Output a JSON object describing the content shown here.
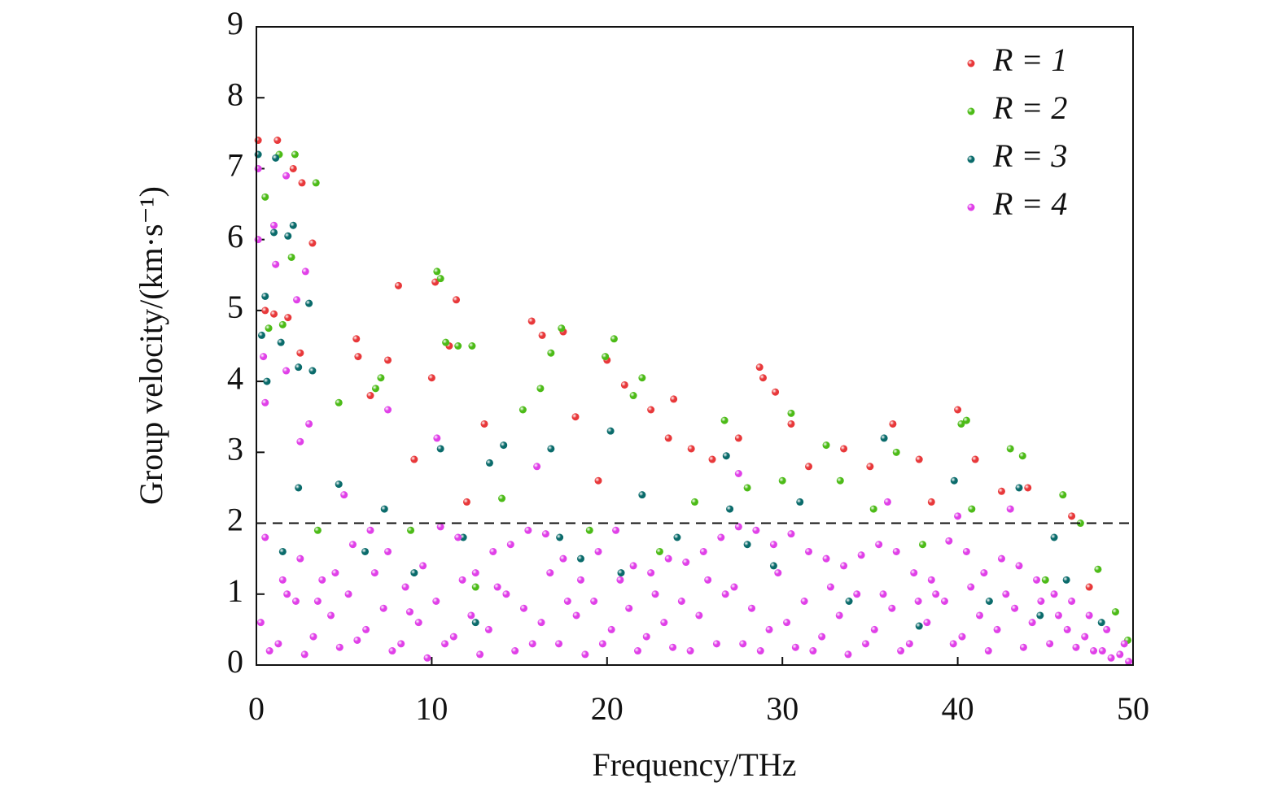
{
  "chart_data": {
    "type": "scatter",
    "x_label": "Frequency/THz",
    "y_label": "Group velocity/(km·s⁻¹)",
    "xlim": [
      0,
      50
    ],
    "ylim": [
      0,
      9
    ],
    "xticks": [
      0,
      10,
      20,
      30,
      40,
      50
    ],
    "yticks": [
      0,
      1,
      2,
      3,
      4,
      5,
      6,
      7,
      8,
      9
    ],
    "hline": 2,
    "legend": "upper right",
    "series": [
      {
        "name": "R = 1",
        "color": "#e8383a",
        "x": [
          0.1,
          1.2,
          2.1,
          2.6,
          3.2,
          0.5,
          1,
          1.8,
          8.1,
          10.2,
          11.4,
          5.7,
          5.8,
          7.5,
          10,
          11,
          15.7,
          16.3,
          17.5,
          20,
          21,
          23.8,
          23.5,
          24.8,
          28.7,
          28.9,
          29.6,
          27.5,
          30.5,
          33.5,
          36.3,
          37.8,
          40,
          42.5,
          44,
          46.5,
          18.2,
          13,
          22.5,
          35,
          26,
          31.5,
          12,
          9,
          19.5,
          41,
          38.5,
          47.5,
          2.5,
          6.5
        ],
        "y": [
          7.4,
          7.4,
          7.0,
          6.8,
          5.95,
          5.0,
          4.95,
          4.9,
          5.35,
          5.4,
          5.15,
          4.6,
          4.35,
          4.3,
          4.05,
          4.5,
          4.85,
          4.65,
          4.7,
          4.3,
          3.95,
          3.75,
          3.2,
          3.05,
          4.2,
          4.05,
          3.85,
          3.2,
          3.4,
          3.05,
          3.4,
          2.9,
          3.6,
          2.45,
          2.5,
          2.1,
          3.5,
          3.4,
          3.6,
          2.8,
          2.9,
          2.8,
          2.3,
          2.9,
          2.6,
          2.9,
          2.3,
          1.1,
          4.4,
          3.8
        ]
      },
      {
        "name": "R = 2",
        "color": "#4cbb17",
        "x": [
          1.3,
          2.2,
          3.4,
          0.5,
          10.3,
          10.5,
          2.0,
          0.7,
          1.5,
          10.8,
          11.5,
          12.3,
          16.8,
          17.4,
          19.9,
          20.4,
          7.1,
          4.7,
          6.8,
          15.2,
          16.2,
          21.5,
          22,
          26.7,
          30.5,
          32.5,
          36.5,
          40.2,
          40.5,
          43,
          43.7,
          46,
          47,
          48,
          49,
          49.7,
          25,
          28,
          33.3,
          38,
          14,
          8.8,
          3.5,
          12.5,
          19,
          23,
          45,
          35.2,
          30,
          40.8
        ],
        "y": [
          7.2,
          7.2,
          6.8,
          6.6,
          5.55,
          5.45,
          5.75,
          4.75,
          4.8,
          4.55,
          4.5,
          4.5,
          4.4,
          4.75,
          4.35,
          4.6,
          4.05,
          3.7,
          3.9,
          3.6,
          3.9,
          3.8,
          4.05,
          3.45,
          3.55,
          3.1,
          3.0,
          3.4,
          3.45,
          3.05,
          2.95,
          2.4,
          2.0,
          1.35,
          0.75,
          0.35,
          2.3,
          2.5,
          2.6,
          1.7,
          2.35,
          1.9,
          1.9,
          1.1,
          1.9,
          1.6,
          1.2,
          2.2,
          2.6,
          2.2
        ]
      },
      {
        "name": "R = 3",
        "color": "#0a6b6b",
        "x": [
          0.1,
          1.1,
          1.0,
          1.8,
          2.1,
          3.0,
          0.5,
          0.3,
          1.4,
          2.4,
          3.2,
          0.6,
          10.5,
          14.1,
          16.8,
          20.2,
          26.8,
          35.8,
          39.8,
          43.5,
          7.3,
          13.3,
          22,
          31,
          45.5,
          46.2,
          48.2,
          2.4,
          4.7,
          6.2,
          9,
          12.5,
          18.5,
          24,
          28,
          33.8,
          37.8,
          41.8,
          1.5,
          17.3,
          29.5,
          27,
          20.8,
          11.8,
          44.7
        ],
        "y": [
          7.2,
          7.15,
          6.1,
          6.05,
          6.2,
          5.1,
          5.2,
          4.65,
          4.55,
          4.2,
          4.15,
          4.0,
          3.05,
          3.1,
          3.05,
          3.3,
          2.95,
          3.2,
          2.6,
          2.5,
          2.2,
          2.85,
          2.4,
          2.3,
          1.8,
          1.2,
          0.6,
          2.5,
          2.55,
          1.6,
          1.3,
          0.6,
          1.5,
          1.8,
          1.7,
          0.9,
          0.55,
          0.9,
          1.6,
          1.8,
          1.4,
          2.2,
          1.3,
          1.8,
          0.7
        ]
      },
      {
        "name": "R = 4",
        "color": "#e040e8",
        "x": [
          0.1,
          0.1,
          1.7,
          1.0,
          2.8,
          1.1,
          2.3,
          0.4,
          1.7,
          3,
          0.5,
          2.5,
          7.5,
          10.3,
          16,
          5,
          27.5,
          36,
          40,
          43,
          0.5,
          1.5,
          2.5,
          3.5,
          4.5,
          5.5,
          6.5,
          7.5,
          8.5,
          9.5,
          10.5,
          11.5,
          12.5,
          13.5,
          14.5,
          15.5,
          16.5,
          17.5,
          18.5,
          19.5,
          20.5,
          21.5,
          22.5,
          23.5,
          24.5,
          25.5,
          26.5,
          27.5,
          28.5,
          29.5,
          30.5,
          31.5,
          32.5,
          33.5,
          34.5,
          35.5,
          36.5,
          37.5,
          38.5,
          39.5,
          40.5,
          41.5,
          42.5,
          43.5,
          44.5,
          45.5,
          46.5,
          47.5,
          48.5,
          49.5,
          0.25,
          1.25,
          2.25,
          3.25,
          4.25,
          5.25,
          6.25,
          7.25,
          8.25,
          9.25,
          10.25,
          11.25,
          12.25,
          13.25,
          14.25,
          15.25,
          16.25,
          17.25,
          18.25,
          19.25,
          20.25,
          21.25,
          22.25,
          23.25,
          24.25,
          25.25,
          26.25,
          27.25,
          28.25,
          29.25,
          30.25,
          31.25,
          32.25,
          33.25,
          34.25,
          35.25,
          36.25,
          37.25,
          38.25,
          39.25,
          40.25,
          41.25,
          42.25,
          43.25,
          44.25,
          45.25,
          46.25,
          47.25,
          48.25,
          49.25,
          0.75,
          1.75,
          2.75,
          3.75,
          4.75,
          5.75,
          6.75,
          7.75,
          8.75,
          9.75,
          10.75,
          11.75,
          12.75,
          13.75,
          14.75,
          15.75,
          16.75,
          17.75,
          18.75,
          19.75,
          20.75,
          21.75,
          22.75,
          23.75,
          24.75,
          25.75,
          26.75,
          27.75,
          28.75,
          29.75,
          30.75,
          31.75,
          32.75,
          33.75,
          34.75,
          35.75,
          36.75,
          37.75,
          38.75,
          39.75,
          40.75,
          41.75,
          42.75,
          43.75,
          44.75,
          45.75,
          46.75,
          47.75,
          48.75,
          49.75
        ],
        "y": [
          7.0,
          6.0,
          6.9,
          6.2,
          5.55,
          5.65,
          5.15,
          4.35,
          4.15,
          3.4,
          3.7,
          3.15,
          3.6,
          3.2,
          2.8,
          2.4,
          2.7,
          2.3,
          2.1,
          2.2,
          1.8,
          1.2,
          1.5,
          0.9,
          1.3,
          1.7,
          1.9,
          1.6,
          1.1,
          1.4,
          1.95,
          1.8,
          1.3,
          1.6,
          1.7,
          1.9,
          1.85,
          1.5,
          1.2,
          1.6,
          1.9,
          1.4,
          1.3,
          1.5,
          1.45,
          1.6,
          1.8,
          1.95,
          1.9,
          1.7,
          1.85,
          1.6,
          1.5,
          1.4,
          1.55,
          1.7,
          1.6,
          1.3,
          1.2,
          1.75,
          1.6,
          1.3,
          1.5,
          1.4,
          1.2,
          1.0,
          0.9,
          0.7,
          0.5,
          0.3,
          0.6,
          0.3,
          0.9,
          0.4,
          0.7,
          1.0,
          0.5,
          0.8,
          0.3,
          0.6,
          0.9,
          0.4,
          0.7,
          0.5,
          1.0,
          0.8,
          0.6,
          0.3,
          0.7,
          0.9,
          0.5,
          0.8,
          0.4,
          0.6,
          0.9,
          0.7,
          0.3,
          1.1,
          0.8,
          0.5,
          0.6,
          0.9,
          0.4,
          0.7,
          1.0,
          0.5,
          0.8,
          0.3,
          0.6,
          0.9,
          0.4,
          0.7,
          0.5,
          0.8,
          0.6,
          0.3,
          0.5,
          0.4,
          0.2,
          0.15,
          0.2,
          1.0,
          0.15,
          1.2,
          0.25,
          0.35,
          1.3,
          0.2,
          0.75,
          0.1,
          0.3,
          1.2,
          0.15,
          1.1,
          0.2,
          0.3,
          1.3,
          0.9,
          0.15,
          0.3,
          1.2,
          0.2,
          1.0,
          0.25,
          0.2,
          1.2,
          1.0,
          0.3,
          0.2,
          1.3,
          0.25,
          0.2,
          1.1,
          0.15,
          0.3,
          1.0,
          0.2,
          0.9,
          1.0,
          0.3,
          1.1,
          0.2,
          1.0,
          0.25,
          0.9,
          0.7,
          0.25,
          0.2,
          0.1,
          0.05
        ]
      }
    ]
  }
}
